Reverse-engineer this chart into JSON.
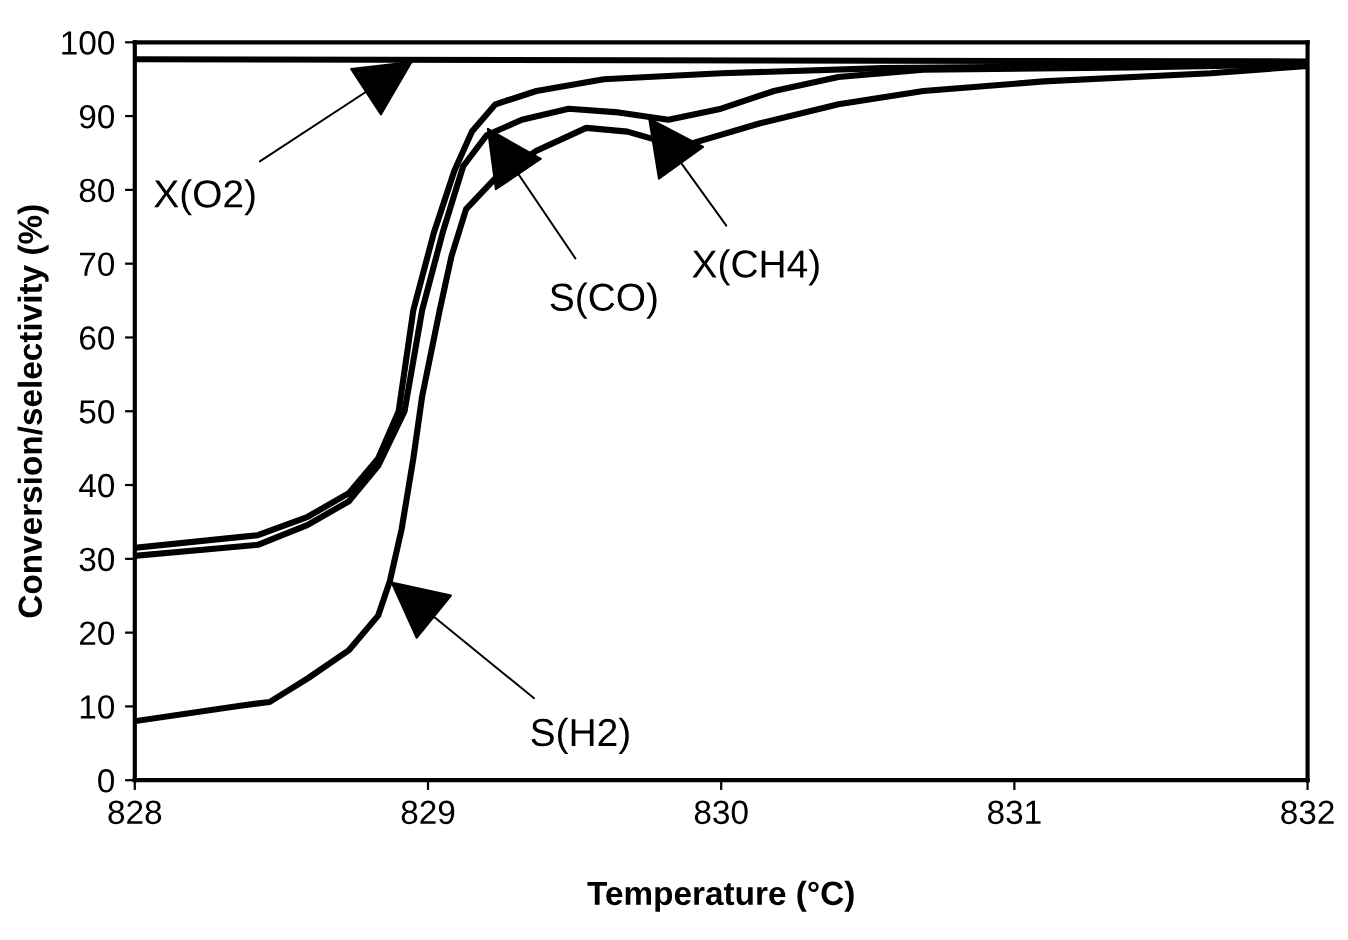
{
  "chart_data": {
    "type": "line",
    "xlabel": "Temperature (°C)",
    "ylabel": "Conversion/selectivity (%)",
    "xlim": [
      828,
      832
    ],
    "xticks": [
      828,
      829,
      830,
      831,
      832
    ],
    "ylim": [
      0,
      100
    ],
    "yticks": [
      0,
      10,
      20,
      30,
      40,
      50,
      60,
      70,
      80,
      90,
      100
    ],
    "grid": false,
    "legend": false,
    "marker": "none",
    "line_style": "solid",
    "series": [
      {
        "color": "#000000",
        "x": [
          828,
          832
        ],
        "values": [
          97.7,
          97.4
        ]
      },
      {
        "color": "#000000",
        "x": [
          828,
          828.42,
          828.59,
          828.73,
          828.83,
          828.9,
          828.95,
          829.02,
          829.09,
          829.15,
          829.23,
          829.37,
          829.6,
          830,
          830.55,
          831.4,
          832
        ],
        "values": [
          31.5,
          33.2,
          35.7,
          38.9,
          43.6,
          50,
          63.7,
          74.2,
          82.6,
          87.9,
          91.6,
          93.4,
          95,
          95.8,
          96.5,
          96.8,
          97.2
        ]
      },
      {
        "color": "#000000",
        "x": [
          828,
          828.42,
          828.59,
          828.73,
          828.83,
          828.92,
          828.98,
          829.05,
          829.12,
          829.2,
          829.32,
          829.48,
          829.65,
          829.82,
          830,
          830.18,
          830.4,
          830.69,
          831.4,
          832
        ],
        "values": [
          30.4,
          31.9,
          34.6,
          37.8,
          42.6,
          50,
          63.7,
          74.2,
          83.2,
          87.4,
          89.5,
          91,
          90.5,
          89.5,
          91,
          93.4,
          95.3,
          96.3,
          96.6,
          97
        ]
      },
      {
        "color": "#000000",
        "x": [
          828,
          828.36,
          828.46,
          828.59,
          828.73,
          828.83,
          828.87,
          828.91,
          828.95,
          828.98,
          829.04,
          829.08,
          829.13,
          829.23,
          829.37,
          829.54,
          829.68,
          829.82,
          829.9,
          830.13,
          830.4,
          830.69,
          831.1,
          831.67,
          832
        ],
        "values": [
          8,
          10.1,
          10.6,
          13.8,
          17.6,
          22.3,
          27,
          34,
          43.6,
          52,
          63.7,
          71,
          77.4,
          81.6,
          85.3,
          88.4,
          87.9,
          86.3,
          86.3,
          89,
          91.6,
          93.4,
          94.7,
          95.8,
          96.8
        ]
      }
    ],
    "annotations": [
      {
        "text": "X(O2)",
        "x": 828.95,
        "y": 97.5
      },
      {
        "text": "S(CO)",
        "x": 829.2,
        "y": 88.5
      },
      {
        "text": "X(CH4)",
        "x": 829.75,
        "y": 89.9
      },
      {
        "text": "S(H2)",
        "x": 828.87,
        "y": 27
      }
    ]
  }
}
